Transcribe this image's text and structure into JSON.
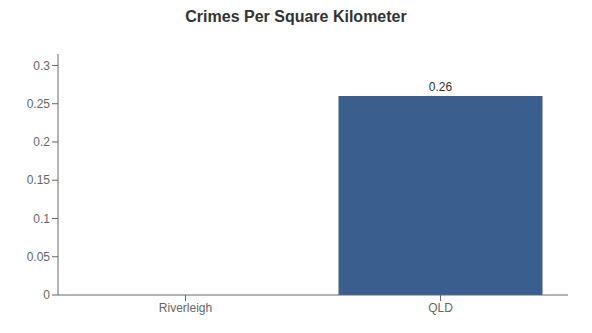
{
  "chart_data": {
    "type": "bar",
    "title": "Crimes Per Square Kilometer",
    "categories": [
      "Riverleigh",
      "QLD"
    ],
    "values": [
      0,
      0.26
    ],
    "color": "#3a5f8f",
    "ylim": [
      0,
      0.315
    ],
    "yticks": [
      0,
      0.05,
      0.1,
      0.15,
      0.2,
      0.25,
      0.3
    ],
    "grid": false,
    "data_labels": true
  }
}
